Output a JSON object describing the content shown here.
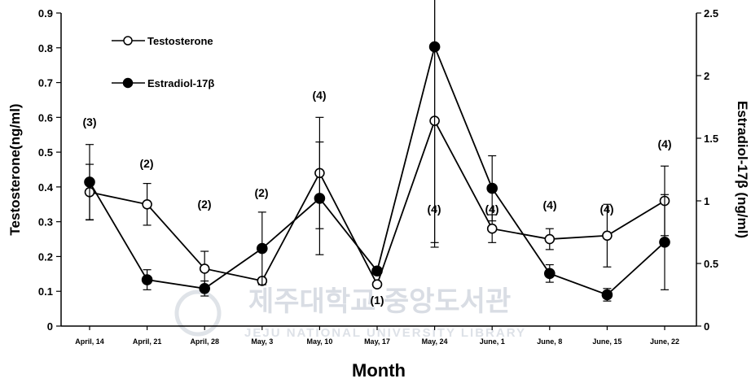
{
  "chart_data": {
    "type": "line",
    "xlabel": "Month",
    "ylabel_left": "Testosterone(ng/ml)",
    "ylabel_right": "Estradiol-17β (ng/ml)",
    "categories": [
      "April, 14",
      "April, 21",
      "April, 28",
      "May, 3",
      "May, 10",
      "May, 17",
      "May, 24",
      "June, 1",
      "June, 8",
      "June, 15",
      "June, 22"
    ],
    "ylim_left": [
      0,
      0.9
    ],
    "yticks_left": [
      "0",
      "0.1",
      "0.2",
      "0.3",
      "0.4",
      "0.5",
      "0.6",
      "0.7",
      "0.8",
      "0.9"
    ],
    "ylim_right": [
      0,
      2.5
    ],
    "yticks_right": [
      "0",
      "0.5",
      "1",
      "1.5",
      "2",
      "2.5"
    ],
    "series": [
      {
        "name": "Testosterone",
        "axis": "left",
        "marker": "open-circle",
        "values": [
          0.385,
          0.35,
          0.165,
          0.13,
          0.44,
          0.12,
          0.59,
          0.28,
          0.25,
          0.26,
          0.36
        ],
        "errors": [
          0.08,
          0.06,
          0.05,
          0.0,
          0.16,
          0.0,
          0.35,
          0.04,
          0.03,
          0.09,
          0.1
        ]
      },
      {
        "name": "Estradiol-17β",
        "axis": "right",
        "marker": "filled-circle",
        "values": [
          1.15,
          0.37,
          0.3,
          0.62,
          1.02,
          0.44,
          2.23,
          1.1,
          0.42,
          0.25,
          0.67
        ],
        "errors": [
          0.3,
          0.08,
          0.06,
          0.29,
          0.45,
          0.0,
          1.6,
          0.26,
          0.07,
          0.05,
          0.38
        ]
      }
    ],
    "sample_sizes": [
      "(3)",
      "(2)",
      "(2)",
      "(2)",
      "(4)",
      "(1)",
      "(4)",
      "(4)",
      "(4)",
      "(4)",
      "(4)"
    ],
    "legend_position": "top-left"
  },
  "watermark": {
    "text": "제주대학교 중앙도서관",
    "subtext": "JEJU NATIONAL UNIVERSITY LIBRARY"
  }
}
